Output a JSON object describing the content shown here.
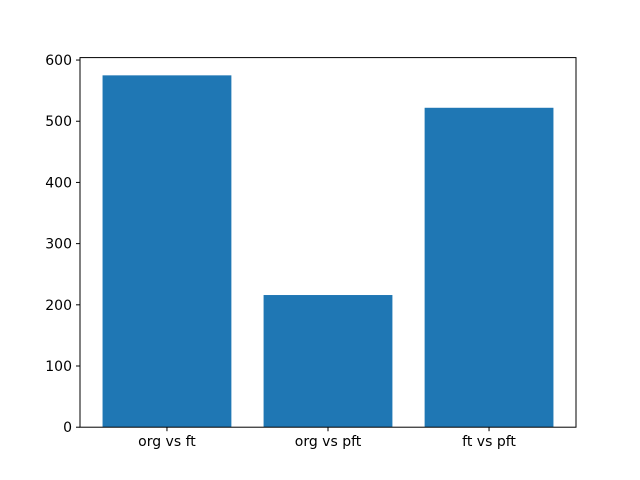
{
  "chart_data": {
    "type": "bar",
    "title": "",
    "xlabel": "",
    "ylabel": "",
    "categories": [
      "org vs ft",
      "org vs pft",
      "ft vs pft"
    ],
    "values": [
      575,
      216,
      522
    ],
    "ylim": [
      0,
      604
    ],
    "yticks": [
      0,
      100,
      200,
      300,
      400,
      500,
      600
    ],
    "bar_color": "#1f77b4",
    "spine_color": "#000000",
    "background_color": "#ffffff",
    "grid": false,
    "legend": "none"
  }
}
